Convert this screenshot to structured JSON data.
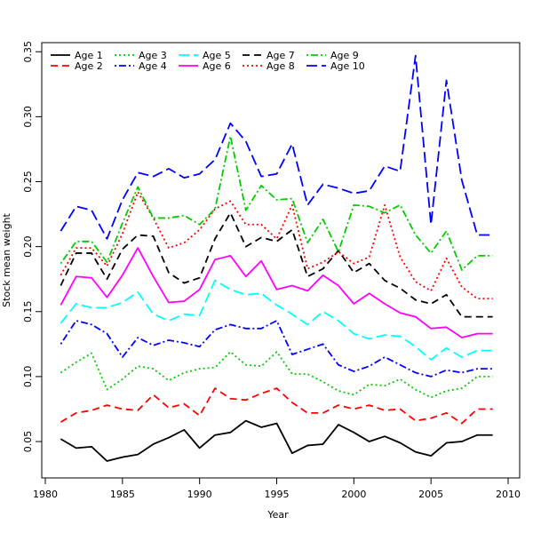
{
  "chart_data": {
    "type": "line",
    "title": "",
    "xlabel": "Year",
    "ylabel": "Stock mean weight",
    "xlim": [
      1980,
      2010
    ],
    "ylim": [
      0.022,
      0.357
    ],
    "xticks": [
      1980,
      1985,
      1990,
      1995,
      2000,
      2005,
      2010
    ],
    "yticks": [
      0.05,
      0.1,
      0.15,
      0.2,
      0.25,
      0.3,
      0.35
    ],
    "ytick_labels": [
      "0.05",
      "0.10",
      "0.15",
      "0.20",
      "0.25",
      "0.30",
      "0.35"
    ],
    "legend_position": "top-left",
    "x": [
      1981,
      1982,
      1983,
      1984,
      1985,
      1986,
      1987,
      1988,
      1989,
      1990,
      1991,
      1992,
      1993,
      1994,
      1995,
      1996,
      1997,
      1998,
      1999,
      2000,
      2001,
      2002,
      2003,
      2004,
      2005,
      2006,
      2007,
      2008,
      2009
    ],
    "series": [
      {
        "name": "Age 1",
        "color": "#000000",
        "dash": "solid",
        "values": [
          0.052,
          0.045,
          0.046,
          0.035,
          0.038,
          0.04,
          0.048,
          0.053,
          0.059,
          0.045,
          0.055,
          0.057,
          0.066,
          0.061,
          0.064,
          0.041,
          0.047,
          0.048,
          0.063,
          0.057,
          0.05,
          0.054,
          0.049,
          0.042,
          0.039,
          0.049,
          0.05,
          0.055,
          0.055
        ]
      },
      {
        "name": "Age 2",
        "color": "#ff0000",
        "dash": "dashed",
        "values": [
          0.065,
          0.072,
          0.074,
          0.078,
          0.075,
          0.074,
          0.086,
          0.076,
          0.079,
          0.07,
          0.091,
          0.083,
          0.082,
          0.087,
          0.091,
          0.08,
          0.072,
          0.072,
          0.078,
          0.075,
          0.078,
          0.074,
          0.075,
          0.066,
          0.068,
          0.072,
          0.064,
          0.075,
          0.075
        ]
      },
      {
        "name": "Age 3",
        "color": "#00cd00",
        "dash": "dotted",
        "values": [
          0.103,
          0.111,
          0.118,
          0.09,
          0.098,
          0.108,
          0.106,
          0.097,
          0.103,
          0.106,
          0.107,
          0.119,
          0.109,
          0.108,
          0.119,
          0.102,
          0.102,
          0.096,
          0.089,
          0.086,
          0.094,
          0.093,
          0.098,
          0.09,
          0.084,
          0.089,
          0.091,
          0.1,
          0.1
        ]
      },
      {
        "name": "Age 4",
        "color": "#0000ff",
        "dash": "dashdot",
        "values": [
          0.125,
          0.143,
          0.14,
          0.133,
          0.115,
          0.13,
          0.124,
          0.128,
          0.126,
          0.123,
          0.136,
          0.14,
          0.137,
          0.137,
          0.143,
          0.117,
          0.121,
          0.125,
          0.109,
          0.104,
          0.108,
          0.115,
          0.109,
          0.103,
          0.1,
          0.105,
          0.103,
          0.106,
          0.106
        ]
      },
      {
        "name": "Age 5",
        "color": "#00ffff",
        "dash": "longdash",
        "values": [
          0.141,
          0.156,
          0.153,
          0.153,
          0.157,
          0.165,
          0.148,
          0.143,
          0.148,
          0.147,
          0.174,
          0.167,
          0.163,
          0.164,
          0.155,
          0.148,
          0.14,
          0.15,
          0.143,
          0.133,
          0.129,
          0.132,
          0.131,
          0.123,
          0.113,
          0.122,
          0.115,
          0.12,
          0.12
        ]
      },
      {
        "name": "Age 6",
        "color": "#ff00ff",
        "dash": "solid",
        "values": [
          0.155,
          0.177,
          0.176,
          0.161,
          0.178,
          0.199,
          0.177,
          0.157,
          0.158,
          0.167,
          0.19,
          0.193,
          0.177,
          0.189,
          0.167,
          0.17,
          0.166,
          0.178,
          0.17,
          0.156,
          0.164,
          0.156,
          0.149,
          0.146,
          0.137,
          0.138,
          0.13,
          0.133,
          0.133
        ]
      },
      {
        "name": "Age 7",
        "color": "#000000",
        "dash": "dashed",
        "values": [
          0.17,
          0.195,
          0.195,
          0.175,
          0.198,
          0.209,
          0.208,
          0.18,
          0.172,
          0.176,
          0.206,
          0.226,
          0.2,
          0.207,
          0.204,
          0.213,
          0.177,
          0.183,
          0.197,
          0.18,
          0.187,
          0.174,
          0.168,
          0.159,
          0.156,
          0.163,
          0.146,
          0.146,
          0.146
        ]
      },
      {
        "name": "Age 8",
        "color": "#ff0000",
        "dash": "dotted",
        "values": [
          0.178,
          0.199,
          0.199,
          0.185,
          0.21,
          0.242,
          0.222,
          0.199,
          0.203,
          0.213,
          0.229,
          0.235,
          0.217,
          0.217,
          0.206,
          0.232,
          0.183,
          0.188,
          0.196,
          0.187,
          0.192,
          0.232,
          0.192,
          0.173,
          0.166,
          0.191,
          0.169,
          0.16,
          0.16
        ]
      },
      {
        "name": "Age 9",
        "color": "#00cd00",
        "dash": "dashdot",
        "values": [
          0.187,
          0.204,
          0.204,
          0.188,
          0.218,
          0.246,
          0.222,
          0.222,
          0.224,
          0.217,
          0.229,
          0.285,
          0.228,
          0.247,
          0.236,
          0.237,
          0.203,
          0.221,
          0.196,
          0.232,
          0.231,
          0.226,
          0.232,
          0.209,
          0.195,
          0.212,
          0.182,
          0.193,
          0.193
        ]
      },
      {
        "name": "Age 10",
        "color": "#0000ff",
        "dash": "longdash",
        "values": [
          0.212,
          0.231,
          0.228,
          0.206,
          0.236,
          0.257,
          0.254,
          0.26,
          0.253,
          0.256,
          0.267,
          0.295,
          0.281,
          0.254,
          0.256,
          0.279,
          0.232,
          0.248,
          0.245,
          0.241,
          0.243,
          0.262,
          0.258,
          0.347,
          0.217,
          0.328,
          0.251,
          0.209,
          0.209
        ]
      }
    ]
  }
}
